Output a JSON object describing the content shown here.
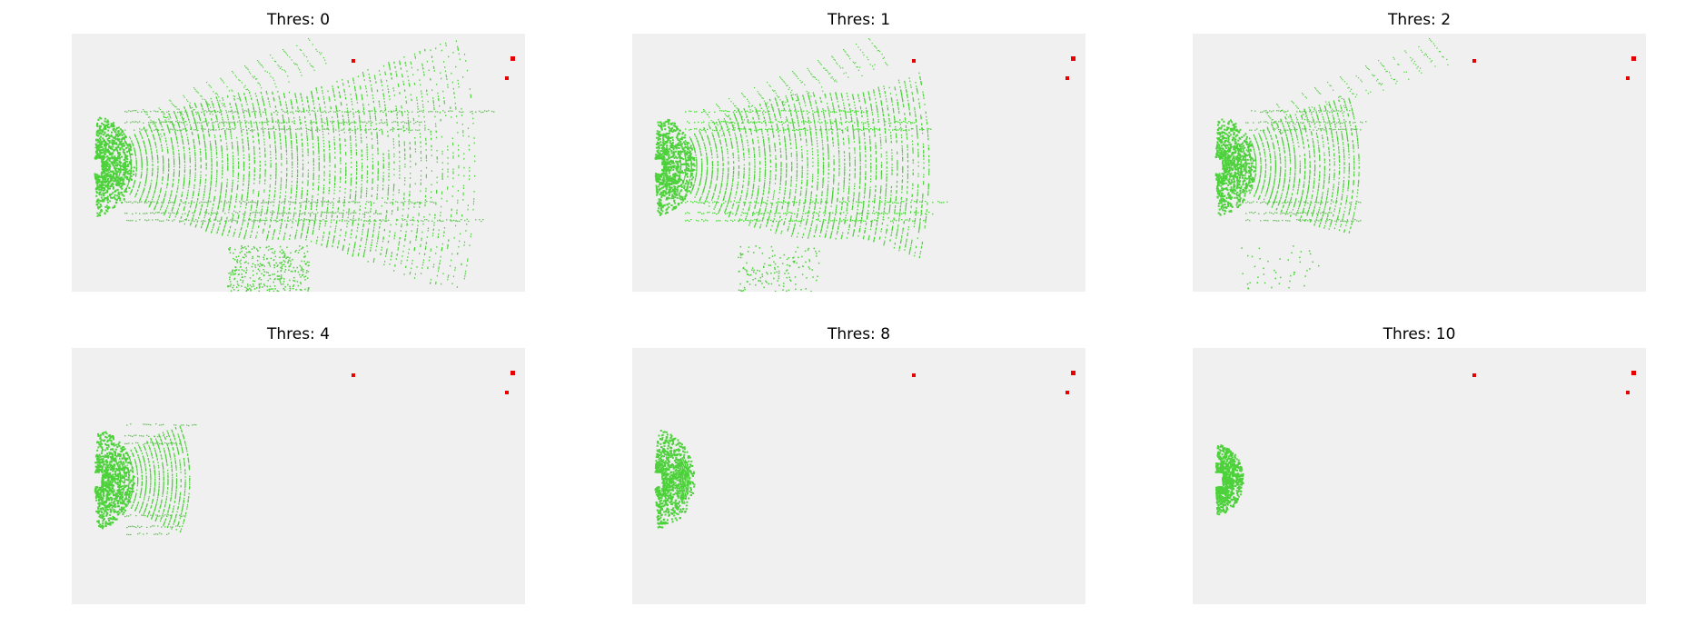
{
  "figure": {
    "panels": [
      {
        "title": "Thres: 0",
        "threshold": 0
      },
      {
        "title": "Thres: 1",
        "threshold": 1
      },
      {
        "title": "Thres: 2",
        "threshold": 2
      },
      {
        "title": "Thres: 4",
        "threshold": 4
      },
      {
        "title": "Thres: 8",
        "threshold": 8
      },
      {
        "title": "Thres: 10",
        "threshold": 10
      }
    ],
    "colors": {
      "background": "#f0f0f0",
      "points": "#4cd13a",
      "markers": "#e80000"
    }
  }
}
